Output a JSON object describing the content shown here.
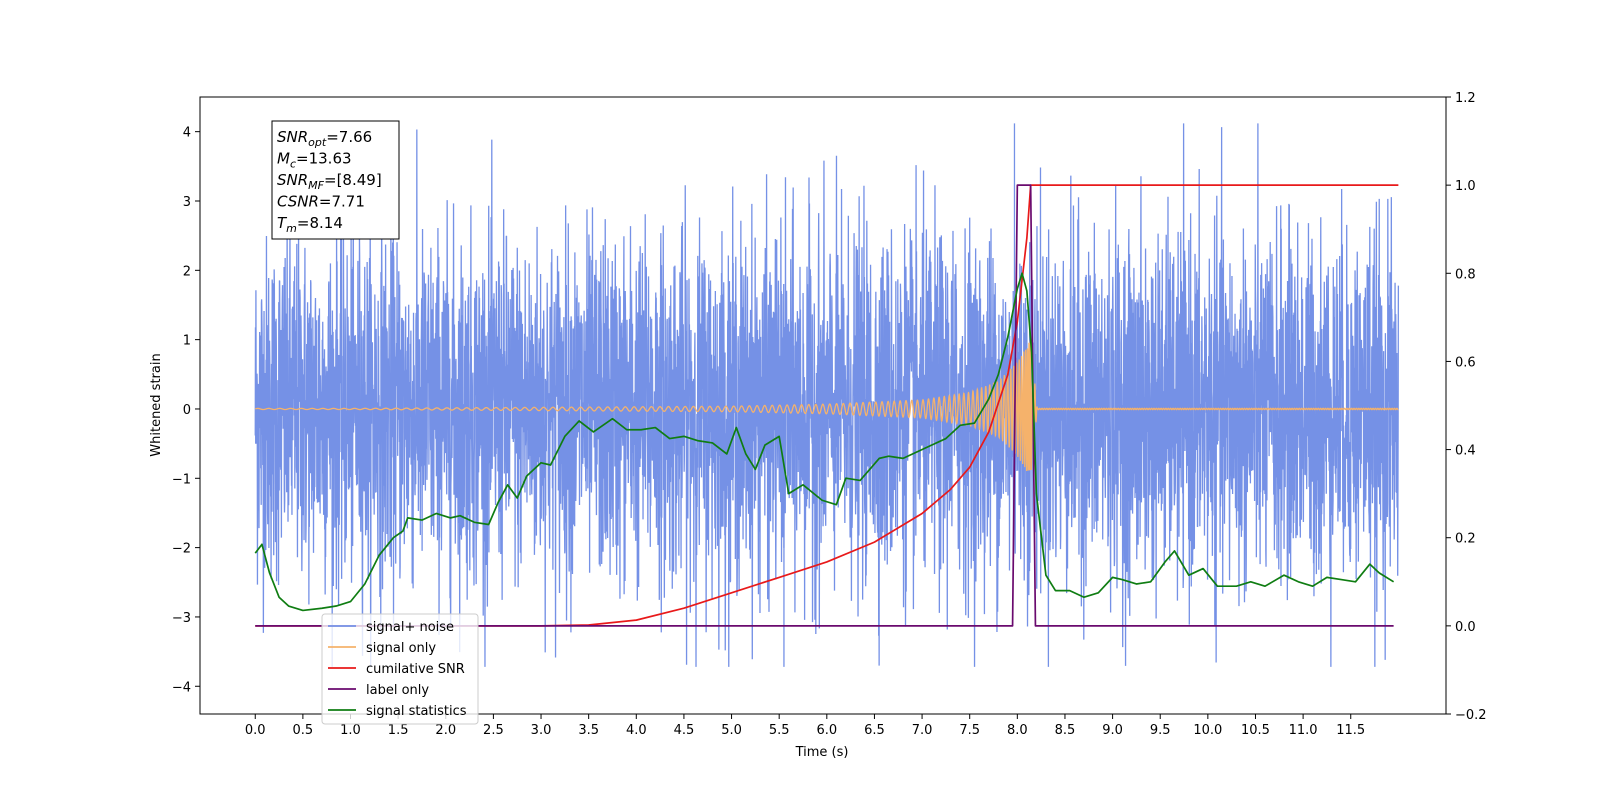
{
  "chart_data": {
    "type": "line",
    "xlabel": "Time (s)",
    "ylabel": "Whitened strain",
    "xlim": [
      -0.58,
      12.5
    ],
    "ylim": [
      -4.4,
      4.5
    ],
    "ylim_right": [
      -0.2,
      1.2
    ],
    "x_ticks": [
      0.0,
      0.5,
      1.0,
      1.5,
      2.0,
      2.5,
      3.0,
      3.5,
      4.0,
      4.5,
      5.0,
      5.5,
      6.0,
      6.5,
      7.0,
      7.5,
      8.0,
      8.5,
      9.0,
      9.5,
      10.0,
      10.5,
      11.0,
      11.5
    ],
    "x_tick_labels": [
      "0.0",
      "0.5",
      "1.0",
      "1.5",
      "2.0",
      "2.5",
      "3.0",
      "3.5",
      "4.0",
      "4.5",
      "5.0",
      "5.5",
      "6.0",
      "6.5",
      "7.0",
      "7.5",
      "8.0",
      "8.5",
      "9.0",
      "9.5",
      "10.0",
      "10.5",
      "11.0",
      "11.5"
    ],
    "y_ticks_left": [
      -4,
      -3,
      -2,
      -1,
      0,
      1,
      2,
      3,
      4
    ],
    "y_tick_labels_left": [
      "−4",
      "−3",
      "−2",
      "−1",
      "0",
      "1",
      "2",
      "3",
      "4"
    ],
    "y_ticks_right": [
      -0.2,
      0.0,
      0.2,
      0.4,
      0.6,
      0.8,
      1.0,
      1.2
    ],
    "y_tick_labels_right": [
      "−0.2",
      "0.0",
      "0.2",
      "0.4",
      "0.6",
      "0.8",
      "1.0",
      "1.2"
    ],
    "legend_position": "lower-left",
    "grid": false,
    "annotation": {
      "lines": [
        {
          "base": "SNR",
          "sub": "opt",
          "value": "=7.66"
        },
        {
          "base": "M",
          "sub": "c",
          "value": "=13.63"
        },
        {
          "base": "SNR",
          "sub": "MF",
          "value": "=[8.49]"
        },
        {
          "base": "CSNR",
          "sub": "",
          "value": "=7.71"
        },
        {
          "base": "T",
          "sub": "m",
          "value": "=8.14"
        }
      ]
    },
    "series": [
      {
        "name": "signal+ noise",
        "axis": "left",
        "color": "#7591e6",
        "kind": "noise",
        "x_range": [
          0.0,
          12.0
        ],
        "envelope_typical": [
          -1.6,
          1.6
        ],
        "peak_max": 4.12,
        "peak_min": -3.72
      },
      {
        "name": "signal only",
        "axis": "left",
        "color": "#f5b26b",
        "kind": "chirp",
        "x_range": [
          0.0,
          12.0
        ],
        "merger_time": 8.14,
        "peak_amplitude": 1.0,
        "amplitude_at_x": [
          [
            5.0,
            0.04
          ],
          [
            6.0,
            0.07
          ],
          [
            7.0,
            0.13
          ],
          [
            7.5,
            0.24
          ],
          [
            7.8,
            0.4
          ],
          [
            8.0,
            0.68
          ],
          [
            8.1,
            0.9
          ],
          [
            8.14,
            1.0
          ]
        ]
      },
      {
        "name": "cumilative SNR",
        "axis": "right",
        "color": "#e8191a",
        "x": [
          0.0,
          3.0,
          3.5,
          4.0,
          4.5,
          5.0,
          5.5,
          6.0,
          6.5,
          7.0,
          7.3,
          7.5,
          7.7,
          7.9,
          8.0,
          8.1,
          8.14,
          9.0,
          10.0,
          11.0,
          12.0
        ],
        "y": [
          0.0,
          0.0,
          0.002,
          0.013,
          0.04,
          0.075,
          0.11,
          0.145,
          0.19,
          0.255,
          0.31,
          0.36,
          0.44,
          0.57,
          0.69,
          0.88,
          1.0,
          1.0,
          1.0,
          1.0,
          1.0
        ]
      },
      {
        "name": "label only",
        "axis": "right",
        "color": "#6a0a6e",
        "x": [
          0.0,
          7.95,
          8.0,
          8.14,
          8.19,
          11.95
        ],
        "y": [
          0.0,
          0.0,
          1.0,
          1.0,
          0.0,
          0.0
        ]
      },
      {
        "name": "signal statistics",
        "axis": "right",
        "color": "#0f7d12",
        "x": [
          0.0,
          0.07,
          0.15,
          0.25,
          0.35,
          0.5,
          0.7,
          0.85,
          1.0,
          1.15,
          1.3,
          1.45,
          1.55,
          1.6,
          1.75,
          1.9,
          2.05,
          2.15,
          2.3,
          2.45,
          2.55,
          2.65,
          2.75,
          2.85,
          3.0,
          3.1,
          3.25,
          3.4,
          3.55,
          3.75,
          3.9,
          4.05,
          4.2,
          4.35,
          4.5,
          4.65,
          4.8,
          4.95,
          5.05,
          5.15,
          5.25,
          5.35,
          5.5,
          5.6,
          5.75,
          5.95,
          6.1,
          6.2,
          6.35,
          6.55,
          6.65,
          6.8,
          6.95,
          7.1,
          7.25,
          7.4,
          7.55,
          7.7,
          7.8,
          7.9,
          8.0,
          8.05,
          8.1,
          8.15,
          8.2,
          8.3,
          8.4,
          8.55,
          8.7,
          8.85,
          9.0,
          9.1,
          9.25,
          9.4,
          9.55,
          9.65,
          9.8,
          9.95,
          10.1,
          10.3,
          10.45,
          10.6,
          10.8,
          10.95,
          11.1,
          11.25,
          11.4,
          11.55,
          11.7,
          11.8,
          11.95
        ],
        "y": [
          0.165,
          0.185,
          0.12,
          0.065,
          0.045,
          0.035,
          0.04,
          0.045,
          0.055,
          0.095,
          0.16,
          0.2,
          0.215,
          0.245,
          0.24,
          0.255,
          0.245,
          0.25,
          0.235,
          0.23,
          0.28,
          0.32,
          0.29,
          0.34,
          0.37,
          0.365,
          0.43,
          0.465,
          0.44,
          0.47,
          0.445,
          0.445,
          0.45,
          0.425,
          0.43,
          0.42,
          0.415,
          0.39,
          0.45,
          0.39,
          0.355,
          0.41,
          0.43,
          0.3,
          0.32,
          0.285,
          0.275,
          0.335,
          0.33,
          0.38,
          0.385,
          0.38,
          0.395,
          0.41,
          0.425,
          0.455,
          0.46,
          0.515,
          0.57,
          0.655,
          0.765,
          0.8,
          0.76,
          0.62,
          0.3,
          0.115,
          0.08,
          0.08,
          0.065,
          0.075,
          0.11,
          0.105,
          0.095,
          0.1,
          0.145,
          0.17,
          0.115,
          0.13,
          0.09,
          0.09,
          0.1,
          0.09,
          0.115,
          0.1,
          0.09,
          0.11,
          0.105,
          0.1,
          0.14,
          0.12,
          0.1
        ]
      }
    ]
  }
}
